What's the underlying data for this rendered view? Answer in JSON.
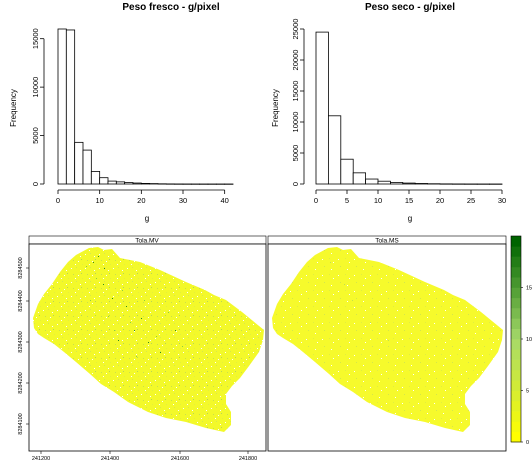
{
  "chart_data": [
    {
      "type": "bar",
      "subtype": "histogram",
      "title": "Peso fresco -  g/pixel",
      "xlabel": "g",
      "ylabel": "Frequency",
      "bin_edges": [
        0,
        2,
        4,
        6,
        8,
        10,
        12,
        14,
        16,
        18,
        20,
        22,
        24,
        26,
        28,
        30,
        32,
        34,
        36,
        38,
        40,
        42
      ],
      "values": [
        16000,
        15900,
        4300,
        3500,
        1300,
        650,
        300,
        220,
        150,
        100,
        60,
        40,
        20,
        10,
        5,
        3,
        2,
        1,
        1,
        1,
        1
      ],
      "xlim": [
        0,
        42
      ],
      "ylim": [
        0,
        16000
      ],
      "x_ticks": [
        "0",
        "10",
        "20",
        "30",
        "40"
      ],
      "y_ticks": [
        "0",
        "5000",
        "10000",
        "15000"
      ]
    },
    {
      "type": "bar",
      "subtype": "histogram",
      "title": "Peso seco -  g/pixel",
      "xlabel": "g",
      "ylabel": "Frequency",
      "bin_edges": [
        0,
        2,
        4,
        6,
        8,
        10,
        12,
        14,
        16,
        18,
        20,
        22,
        24,
        26,
        28,
        30
      ],
      "values": [
        24500,
        11000,
        4000,
        1800,
        800,
        450,
        250,
        150,
        80,
        40,
        20,
        10,
        5,
        3,
        2
      ],
      "xlim": [
        0,
        30
      ],
      "ylim": [
        0,
        25000
      ],
      "x_ticks": [
        "0",
        "5",
        "10",
        "15",
        "20",
        "25",
        "30"
      ],
      "y_ticks": [
        "0",
        "5000",
        "10000",
        "15000",
        "20000",
        "25000"
      ]
    },
    {
      "type": "heatmap",
      "subtype": "raster-map",
      "panels": [
        "Tola.MV",
        "Tola.MS"
      ],
      "x_ticks": [
        "241200",
        "241400",
        "241600",
        "241800"
      ],
      "y_ticks": [
        "8284100",
        "8284200",
        "8284300",
        "8284400",
        "8284500"
      ],
      "colorbar_ticks": [
        "0",
        "5",
        "10",
        "15"
      ],
      "colorbar_range": [
        0,
        20
      ],
      "colors": {
        "low": "#ffff00",
        "mid": "#a6d96a",
        "high": "#006400"
      }
    }
  ]
}
